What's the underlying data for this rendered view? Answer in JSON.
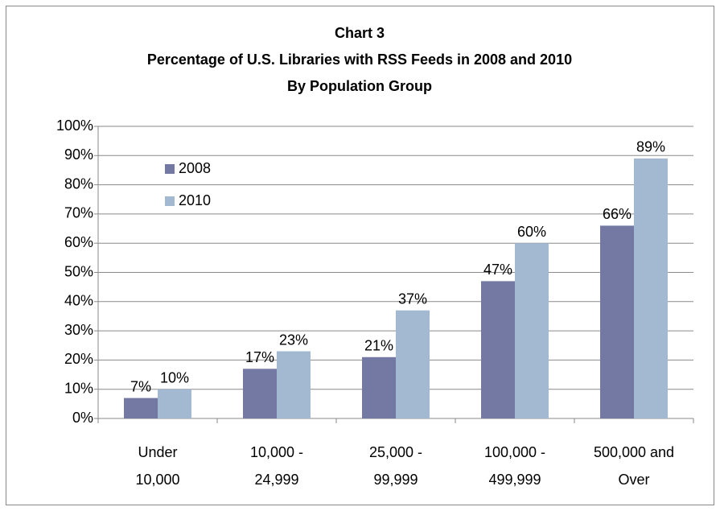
{
  "chart_data": {
    "type": "bar",
    "title": [
      "Chart 3",
      "Percentage of U.S. Libraries with  RSS Feeds in 2008 and 2010",
      "By Population Group"
    ],
    "categories": [
      [
        "Under",
        "10,000"
      ],
      [
        "10,000 -",
        "24,999"
      ],
      [
        "25,000 -",
        "99,999"
      ],
      [
        "100,000 -",
        "499,999"
      ],
      [
        "500,000 and",
        "Over"
      ]
    ],
    "series": [
      {
        "name": "2008",
        "color": "#7479a3",
        "values": [
          7,
          17,
          21,
          47,
          66
        ],
        "value_labels": [
          "7%",
          "17%",
          "21%",
          "47%",
          "66%"
        ]
      },
      {
        "name": "2010",
        "color": "#a3b8d1",
        "values": [
          10,
          23,
          37,
          60,
          89
        ],
        "value_labels": [
          "10%",
          "23%",
          "37%",
          "60%",
          "89%"
        ]
      }
    ],
    "ylim": [
      0,
      100
    ],
    "yticks": [
      {
        "value": 0,
        "label": "0%"
      },
      {
        "value": 10,
        "label": "10%"
      },
      {
        "value": 20,
        "label": "20%"
      },
      {
        "value": 30,
        "label": "30%"
      },
      {
        "value": 40,
        "label": "40%"
      },
      {
        "value": 50,
        "label": "50%"
      },
      {
        "value": 60,
        "label": "60%"
      },
      {
        "value": 70,
        "label": "70%"
      },
      {
        "value": 80,
        "label": "80%"
      },
      {
        "value": 90,
        "label": "90%"
      },
      {
        "value": 100,
        "label": "100%"
      }
    ],
    "grid": true,
    "legend": "upper left"
  }
}
